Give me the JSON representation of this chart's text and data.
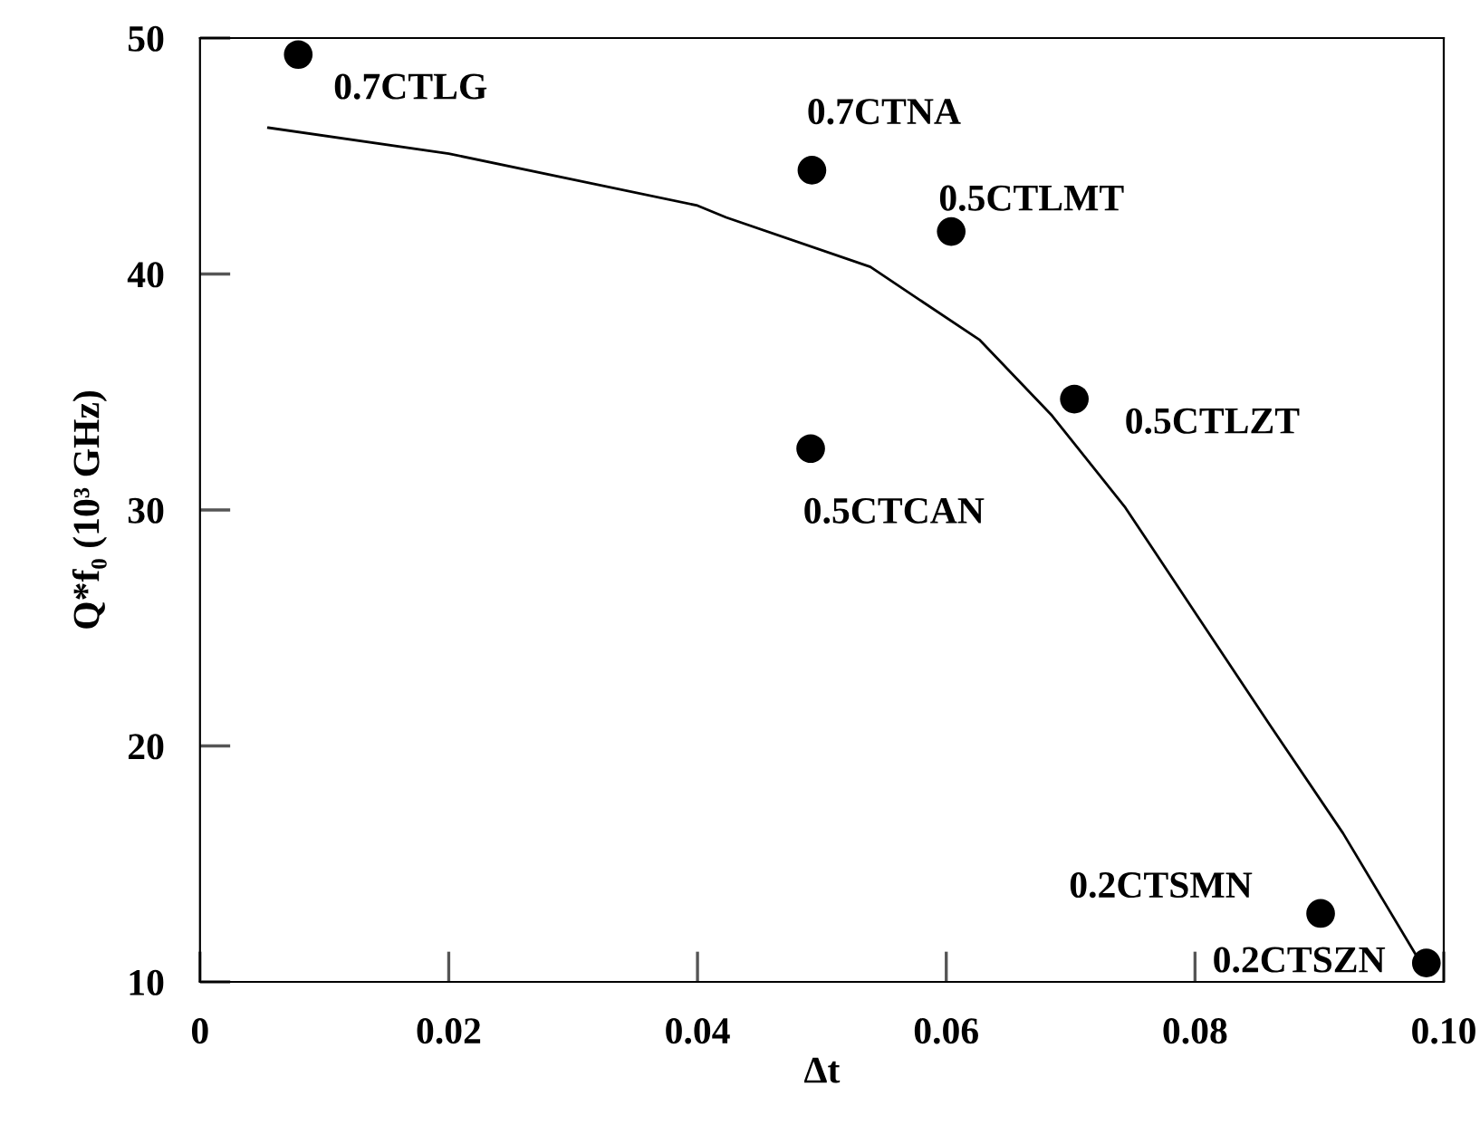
{
  "chart_data": {
    "type": "scatter",
    "xlabel": "Δt",
    "ylabel": "Q*f₀ (10³ GHz)",
    "xlim": [
      0,
      0.1
    ],
    "ylim": [
      10,
      50
    ],
    "xticks": [
      {
        "value": 0,
        "label": "0"
      },
      0.02,
      0.04,
      0.06,
      0.08,
      {
        "value": 0.1,
        "label": "0.10"
      }
    ],
    "yticks": [
      10,
      20,
      30,
      40,
      50
    ],
    "grid": false,
    "legend": false,
    "series": [
      {
        "color": "#000000",
        "marker": "circle",
        "x": [
          0.0079,
          0.0492,
          0.0604,
          0.0703,
          0.0491,
          0.0901,
          0.0986
        ],
        "values": [
          49.3,
          44.4,
          41.8,
          34.7,
          32.6,
          12.9,
          10.8
        ]
      },
      {
        "type": "line",
        "color": "#000000",
        "marker": "none",
        "line_style": "solid",
        "x": [
          0.0055,
          0.02,
          0.04,
          0.0423,
          0.0539,
          0.0627,
          0.0685,
          0.0744,
          0.0802,
          0.086,
          0.0919,
          0.0977
        ],
        "values": [
          46.2,
          45.1,
          42.9,
          42.4,
          40.3,
          37.2,
          34.0,
          30.1,
          25.5,
          20.9,
          16.3,
          11.2
        ]
      }
    ],
    "annotations": [
      {
        "text": "0.7CTLG",
        "x": 0.0079,
        "y": 49.3
      },
      {
        "text": "0.7CTNA",
        "x": 0.0492,
        "y": 44.4
      },
      {
        "text": "0.5CTLMT",
        "x": 0.0604,
        "y": 41.8
      },
      {
        "text": "0.5CTLZT",
        "x": 0.0703,
        "y": 34.7
      },
      {
        "text": "0.5CTCAN",
        "x": 0.0491,
        "y": 32.6
      },
      {
        "text": "0.2CTSMN",
        "x": 0.0901,
        "y": 12.9
      },
      {
        "text": "0.2CTSZN",
        "x": 0.0986,
        "y": 10.8
      }
    ]
  }
}
